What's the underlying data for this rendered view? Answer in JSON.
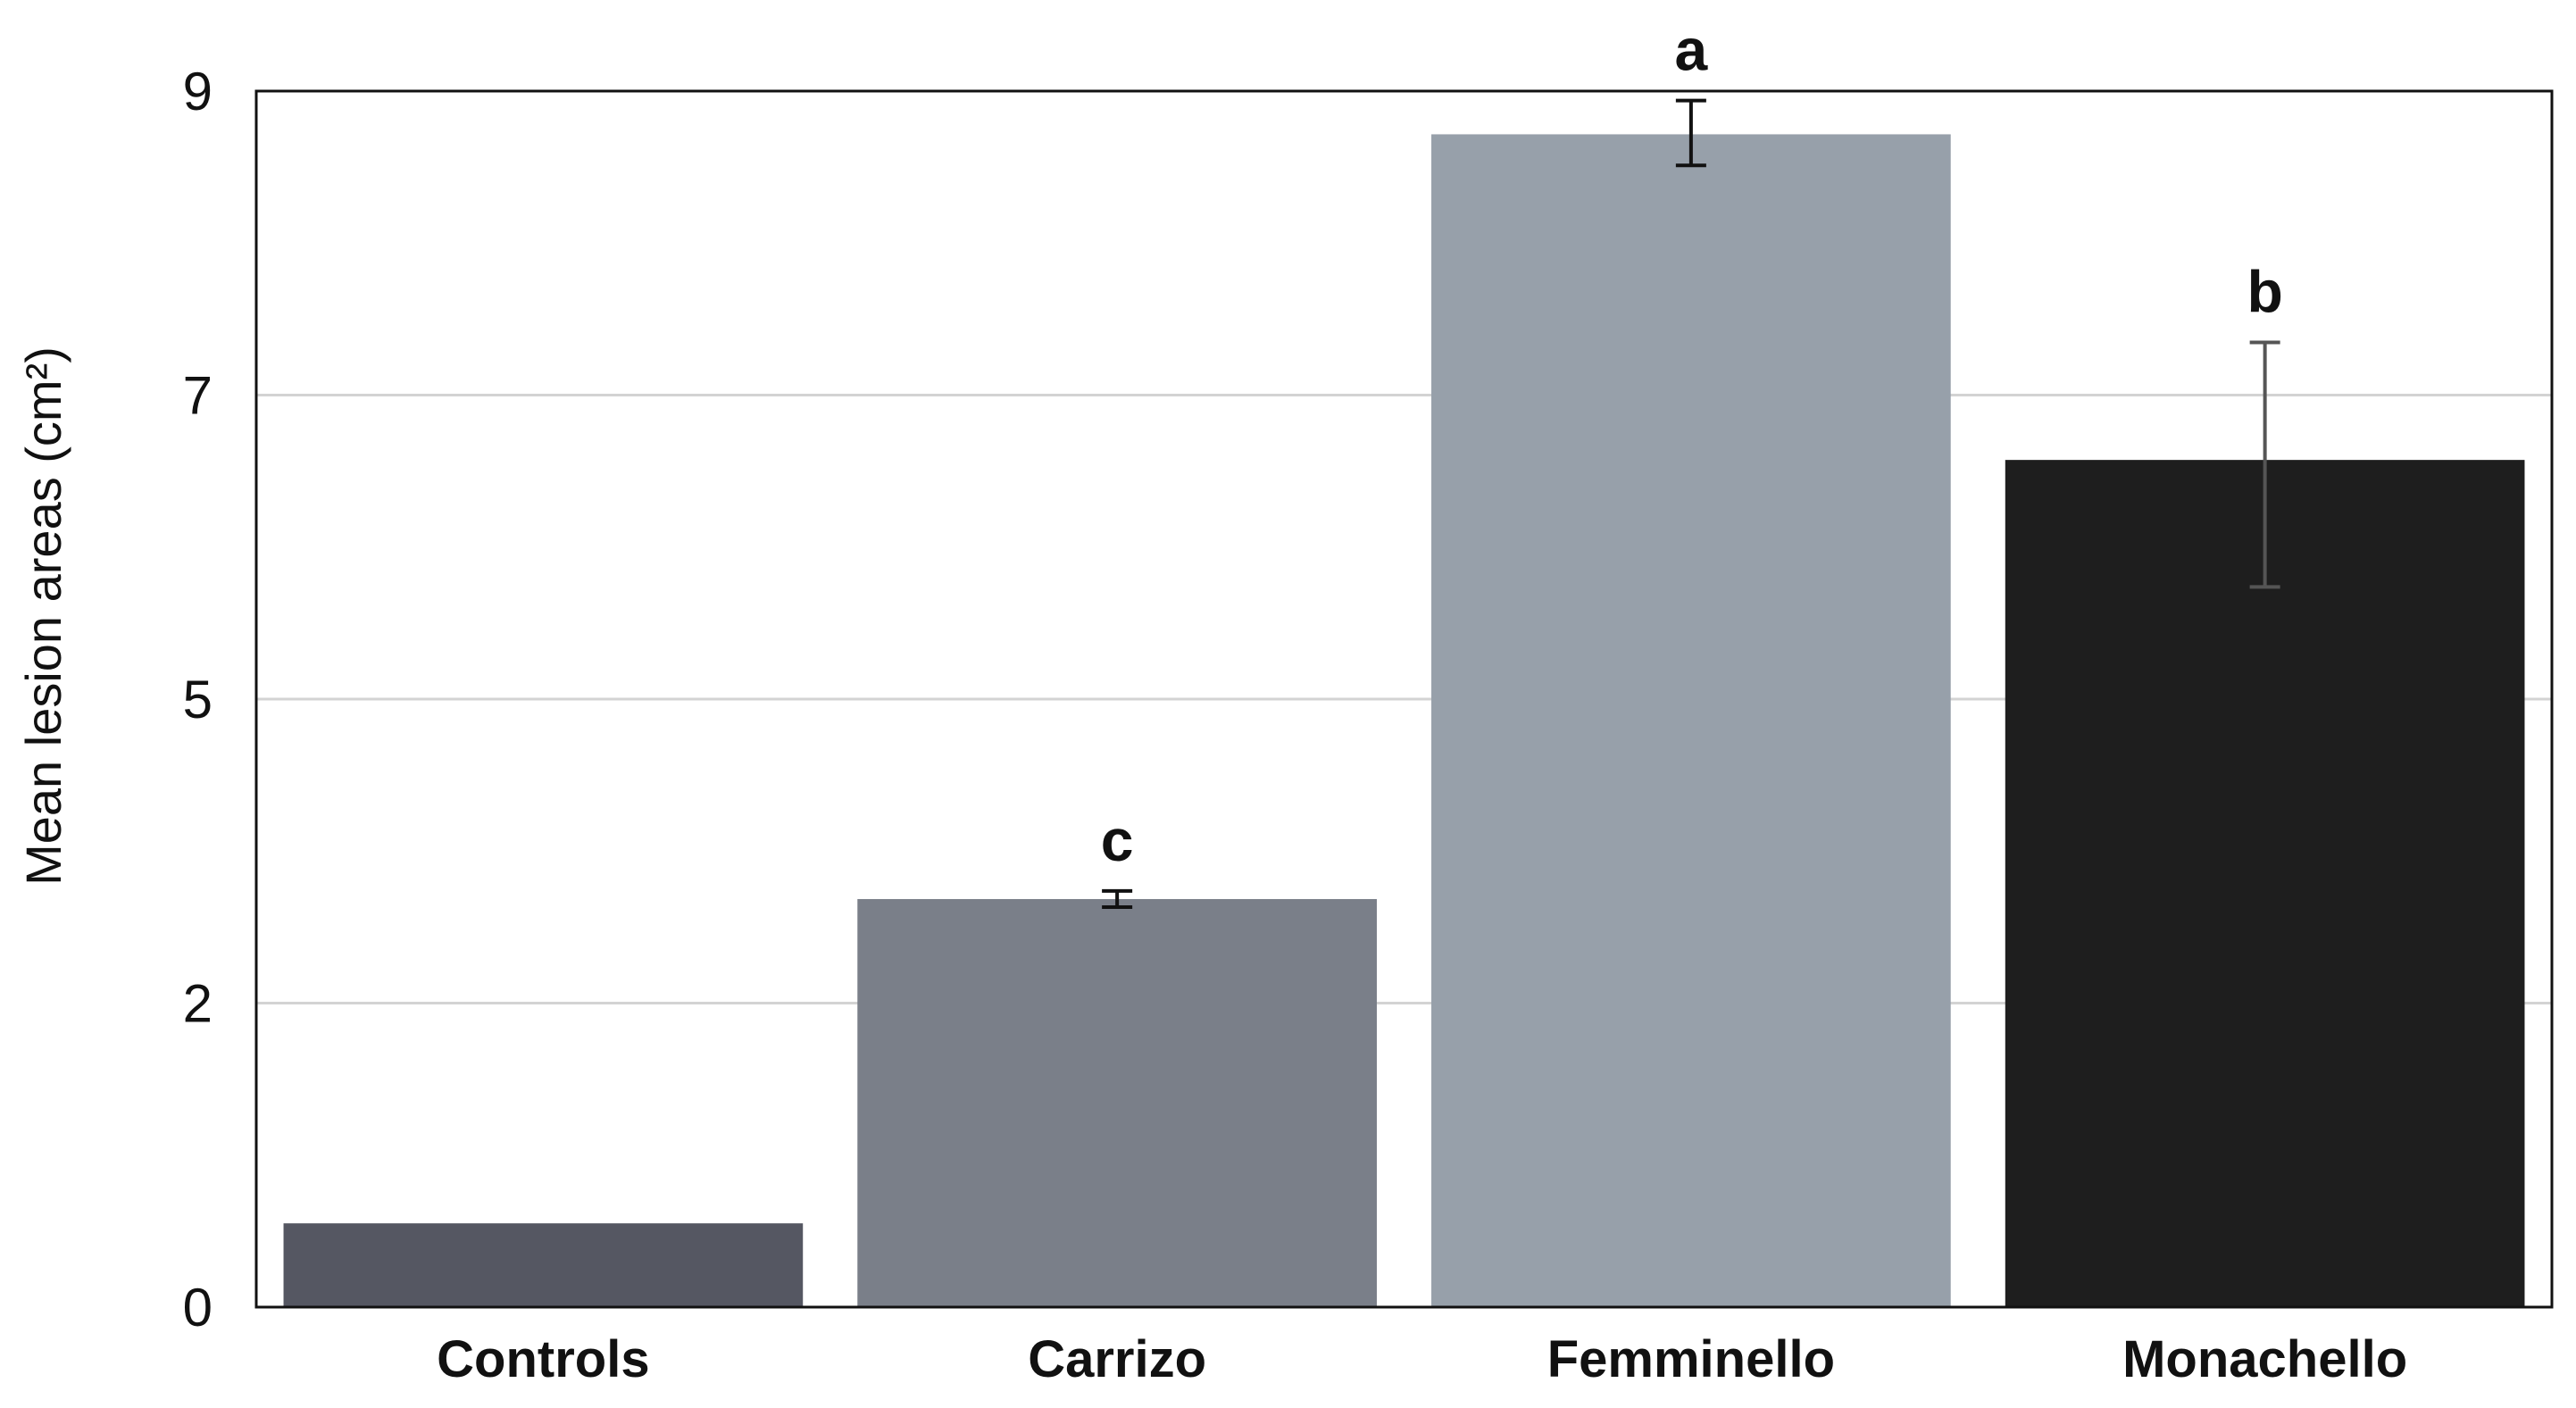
{
  "chart_data": {
    "type": "bar",
    "ylabel": "Mean lesion areas (cm²)",
    "xlabel": "",
    "ylim": [
      0,
      9
    ],
    "y_ticks": [
      {
        "value": 0,
        "label": "0"
      },
      {
        "value": 2.25,
        "label": "2"
      },
      {
        "value": 4.5,
        "label": "5"
      },
      {
        "value": 6.75,
        "label": "7"
      },
      {
        "value": 9,
        "label": "9"
      }
    ],
    "grid": "horizontal",
    "categories": [
      "Controls",
      "Carrizo",
      "Femminello",
      "Monachello"
    ],
    "values": [
      0.62,
      3.02,
      8.68,
      6.27
    ],
    "error_bars": [
      null,
      {
        "low": 2.96,
        "high": 3.08
      },
      {
        "low": 8.45,
        "high": 8.93
      },
      {
        "low": 5.33,
        "high": 7.14
      }
    ],
    "significance_labels": [
      "",
      "c",
      "a",
      "b"
    ],
    "bar_colors": [
      "#555762",
      "#7a7f89",
      "#97a0aa",
      "#1e1e1e"
    ],
    "errorbar_colors": [
      "#111111",
      "#111111",
      "#111111",
      "#555555"
    ]
  }
}
